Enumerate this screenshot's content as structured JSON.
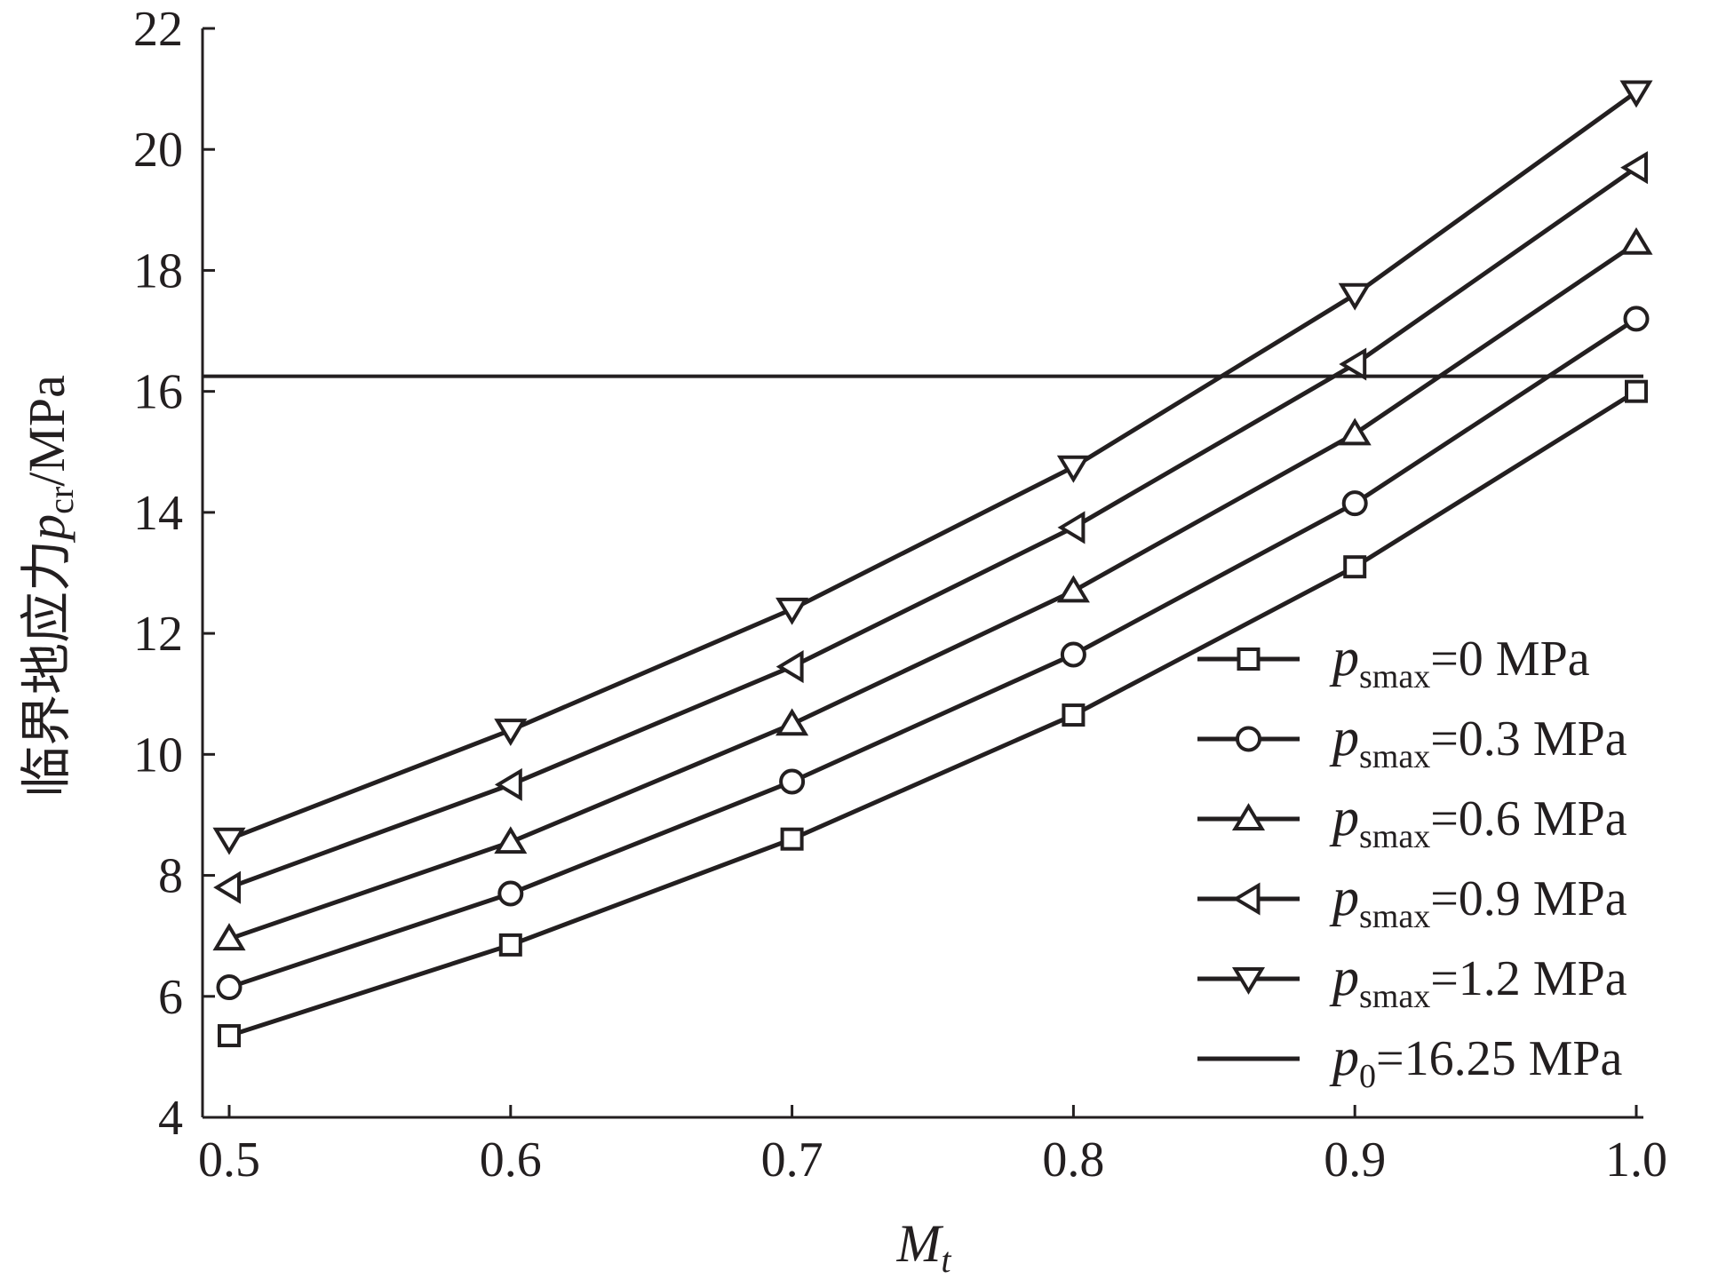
{
  "chart_data": {
    "type": "line",
    "title": "",
    "xlabel": {
      "main": "M",
      "sub": "t"
    },
    "ylabel": {
      "prefix": "临界地应力",
      "var": "p",
      "sub": "cr",
      "suffix": "/MPa"
    },
    "x": [
      0.5,
      0.6,
      0.7,
      0.8,
      0.9,
      1.0
    ],
    "x_ticks": [
      "0.5",
      "0.6",
      "0.7",
      "0.8",
      "0.9",
      "1.0"
    ],
    "y_ticks": [
      "4",
      "6",
      "8",
      "10",
      "12",
      "14",
      "16",
      "18",
      "20",
      "22"
    ],
    "xlim": [
      0.49,
      1.0
    ],
    "ylim": [
      4,
      22
    ],
    "grid": false,
    "legend_position": "bottom-right",
    "series": [
      {
        "name": {
          "var": "p",
          "sub": "smax",
          "text": "=0 MPa"
        },
        "marker": "square",
        "values": [
          5.35,
          6.85,
          8.6,
          10.65,
          13.1,
          16.0
        ]
      },
      {
        "name": {
          "var": "p",
          "sub": "smax",
          "text": "=0.3 MPa"
        },
        "marker": "circle",
        "values": [
          6.15,
          7.7,
          9.55,
          11.65,
          14.15,
          17.2
        ]
      },
      {
        "name": {
          "var": "p",
          "sub": "smax",
          "text": "=0.6 MPa"
        },
        "marker": "triangle-up",
        "values": [
          6.95,
          8.55,
          10.5,
          12.7,
          15.3,
          18.45
        ]
      },
      {
        "name": {
          "var": "p",
          "sub": "smax",
          "text": "=0.9 MPa"
        },
        "marker": "triangle-left",
        "values": [
          7.8,
          9.5,
          11.45,
          13.75,
          16.45,
          19.7
        ]
      },
      {
        "name": {
          "var": "p",
          "sub": "smax",
          "text": "=1.2 MPa"
        },
        "marker": "triangle-down",
        "values": [
          8.6,
          10.4,
          12.4,
          14.75,
          17.6,
          20.95
        ]
      }
    ],
    "reference_line": {
      "name": {
        "var": "p",
        "sub": "0",
        "text": "=16.25 MPa"
      },
      "value": 16.25
    },
    "colors": {
      "ink": "#231f20",
      "background": "#ffffff"
    }
  }
}
